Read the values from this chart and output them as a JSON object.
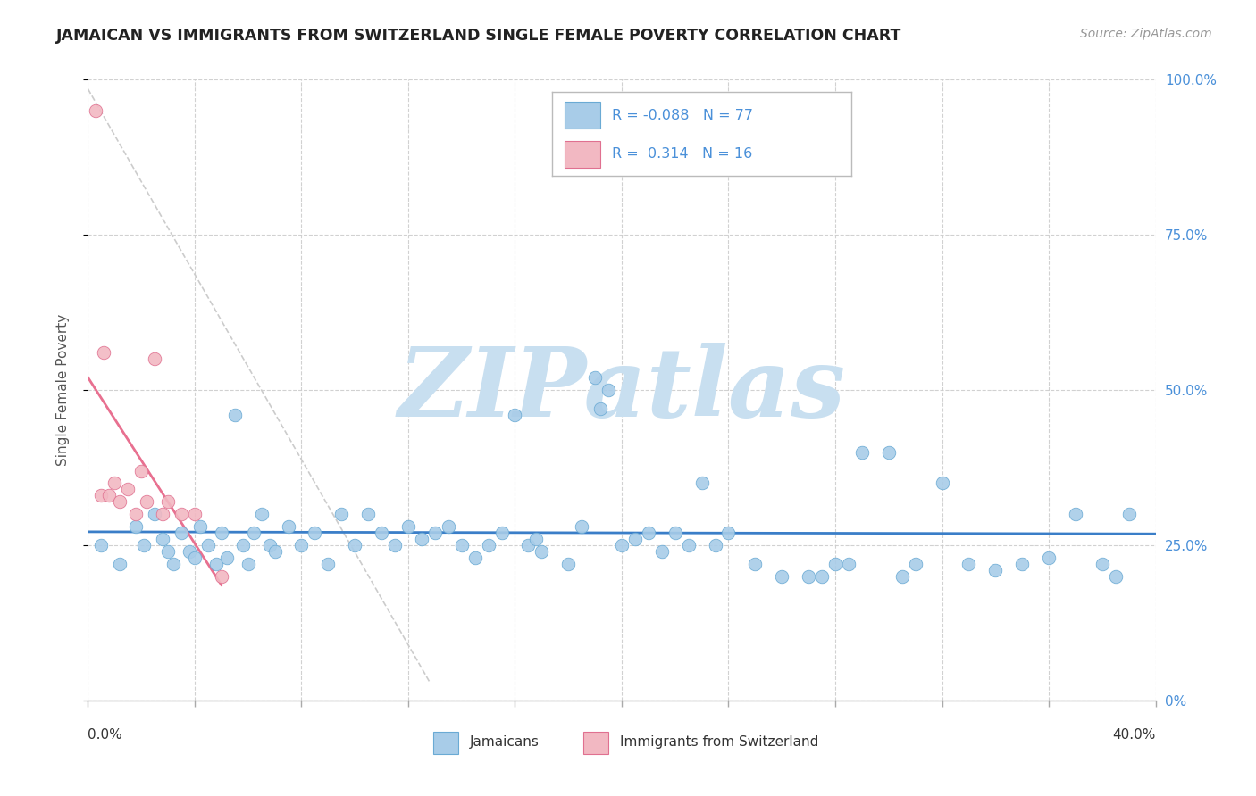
{
  "title": "JAMAICAN VS IMMIGRANTS FROM SWITZERLAND SINGLE FEMALE POVERTY CORRELATION CHART",
  "source": "Source: ZipAtlas.com",
  "ylabel": "Single Female Poverty",
  "yticks": [
    0,
    25,
    50,
    75,
    100
  ],
  "xmin": 0.0,
  "xmax": 40.0,
  "ymin": 0.0,
  "ymax": 100.0,
  "r1": "-0.088",
  "n1": "77",
  "r2": "0.314",
  "n2": "16",
  "color_jamaican_fill": "#A8CCE8",
  "color_jamaican_edge": "#6AAAD4",
  "color_swiss_fill": "#F2B8C2",
  "color_swiss_edge": "#E07090",
  "color_trend_blue": "#3A7EC8",
  "color_trend_pink": "#E87090",
  "watermark": "ZIPatlas",
  "watermark_color": "#C8DFF0",
  "blue_x": [
    0.5,
    1.2,
    1.8,
    2.1,
    2.5,
    2.8,
    3.0,
    3.2,
    3.5,
    3.8,
    4.0,
    4.2,
    4.5,
    4.8,
    5.0,
    5.2,
    5.5,
    5.8,
    6.0,
    6.2,
    6.5,
    6.8,
    7.0,
    7.5,
    8.0,
    8.5,
    9.0,
    9.5,
    10.0,
    10.5,
    11.0,
    11.5,
    12.0,
    12.5,
    13.0,
    13.5,
    14.0,
    14.5,
    15.0,
    15.5,
    16.0,
    16.5,
    17.0,
    18.0,
    18.5,
    19.0,
    19.5,
    20.0,
    20.5,
    21.0,
    21.5,
    22.0,
    22.5,
    23.0,
    23.5,
    24.0,
    25.0,
    26.0,
    27.0,
    28.0,
    28.5,
    29.0,
    30.0,
    30.5,
    31.0,
    32.0,
    33.0,
    34.0,
    35.0,
    36.0,
    37.0,
    38.0,
    38.5,
    39.0,
    27.5,
    19.2,
    16.8
  ],
  "blue_y": [
    25,
    22,
    28,
    25,
    30,
    26,
    24,
    22,
    27,
    24,
    23,
    28,
    25,
    22,
    27,
    23,
    46,
    25,
    22,
    27,
    30,
    25,
    24,
    28,
    25,
    27,
    22,
    30,
    25,
    30,
    27,
    25,
    28,
    26,
    27,
    28,
    25,
    23,
    25,
    27,
    46,
    25,
    24,
    22,
    28,
    52,
    50,
    25,
    26,
    27,
    24,
    27,
    25,
    35,
    25,
    27,
    22,
    20,
    20,
    22,
    22,
    40,
    40,
    20,
    22,
    35,
    22,
    21,
    22,
    23,
    30,
    22,
    20,
    30,
    20,
    47,
    26
  ],
  "pink_x": [
    0.3,
    0.5,
    0.6,
    0.8,
    1.0,
    1.2,
    1.5,
    1.8,
    2.0,
    2.2,
    2.5,
    2.8,
    3.0,
    3.5,
    4.0,
    5.0
  ],
  "pink_y": [
    95,
    33,
    56,
    33,
    35,
    32,
    34,
    30,
    37,
    32,
    55,
    30,
    32,
    30,
    30,
    20
  ]
}
